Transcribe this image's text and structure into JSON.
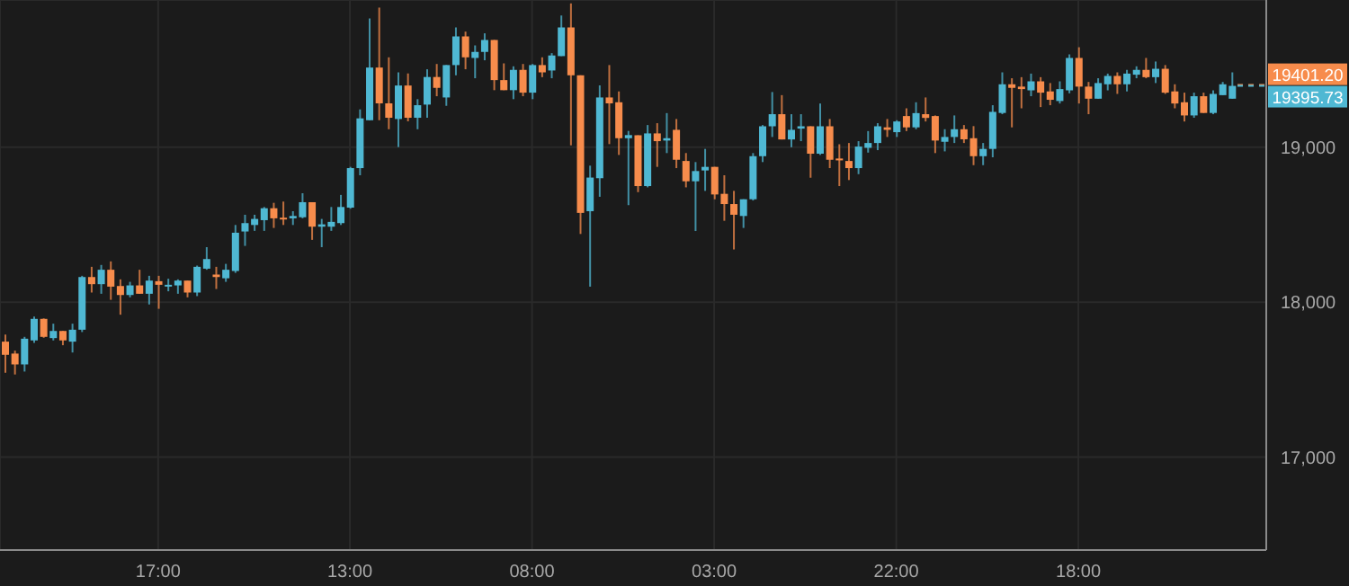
{
  "chart_data": {
    "type": "candlestick",
    "categories": [
      null,
      null,
      null,
      null,
      null,
      null,
      null,
      null,
      null,
      null,
      null,
      null,
      null,
      null,
      null,
      null,
      "17:00",
      null,
      null,
      null,
      null,
      null,
      null,
      null,
      null,
      null,
      null,
      null,
      null,
      null,
      null,
      null,
      null,
      null,
      null,
      null,
      "13:00",
      null,
      null,
      null,
      null,
      null,
      null,
      null,
      null,
      null,
      null,
      null,
      null,
      null,
      null,
      null,
      null,
      null,
      null,
      "08:00",
      null,
      null,
      null,
      null,
      null,
      null,
      null,
      null,
      null,
      null,
      null,
      null,
      null,
      null,
      null,
      null,
      null,
      null,
      "03:00",
      null,
      null,
      null,
      null,
      null,
      null,
      null,
      null,
      null,
      null,
      null,
      null,
      null,
      null,
      null,
      null,
      null,
      null,
      "22:00",
      null,
      null,
      null,
      null,
      null,
      null,
      null,
      null,
      null,
      null,
      null,
      null,
      null,
      null,
      null,
      null,
      null,
      null,
      "18:00",
      null,
      null,
      null,
      null,
      null,
      null,
      null,
      null,
      null,
      null,
      null,
      null,
      null,
      null,
      null,
      null
    ],
    "ohlc": [
      [
        17745,
        17791,
        17544,
        17660
      ],
      [
        17668,
        17687,
        17533,
        17598
      ],
      [
        17598,
        17776,
        17552,
        17764
      ],
      [
        17753,
        17907,
        17737,
        17892
      ],
      [
        17892,
        17895,
        17770,
        17776
      ],
      [
        17768,
        17861,
        17753,
        17814
      ],
      [
        17814,
        17814,
        17722,
        17753
      ],
      [
        17745,
        17861,
        17675,
        17822
      ],
      [
        17822,
        18170,
        17807,
        18162
      ],
      [
        18162,
        18228,
        18062,
        18116
      ],
      [
        18116,
        18240,
        18054,
        18209
      ],
      [
        18209,
        18263,
        18015,
        18100
      ],
      [
        18104,
        18147,
        17919,
        18046
      ],
      [
        18046,
        18131,
        18031,
        18108
      ],
      [
        18108,
        18209,
        18054,
        18054
      ],
      [
        18054,
        18170,
        17985,
        18139
      ],
      [
        18135,
        18170,
        17957,
        18112
      ],
      [
        18104,
        18151,
        18070,
        18112
      ],
      [
        18108,
        18147,
        18054,
        18139
      ],
      [
        18139,
        18139,
        18031,
        18062
      ],
      [
        18062,
        18236,
        18039,
        18228
      ],
      [
        18216,
        18355,
        18209,
        18278
      ],
      [
        18178,
        18228,
        18085,
        18162
      ],
      [
        18154,
        18247,
        18131,
        18209
      ],
      [
        18201,
        18498,
        18189,
        18448
      ],
      [
        18456,
        18564,
        18363,
        18510
      ],
      [
        18498,
        18564,
        18460,
        18537
      ],
      [
        18529,
        18614,
        18460,
        18606
      ],
      [
        18606,
        18641,
        18479,
        18541
      ],
      [
        18545,
        18649,
        18498,
        18537
      ],
      [
        18541,
        18587,
        18498,
        18556
      ],
      [
        18548,
        18703,
        18541,
        18645
      ],
      [
        18645,
        18645,
        18402,
        18487
      ],
      [
        18487,
        18537,
        18355,
        18502
      ],
      [
        18487,
        18614,
        18460,
        18518
      ],
      [
        18510,
        18692,
        18498,
        18614
      ],
      [
        18610,
        18873,
        18603,
        18865
      ],
      [
        18865,
        19244,
        18819,
        19186
      ],
      [
        19174,
        19831,
        19174,
        19514
      ],
      [
        19514,
        19901,
        19174,
        19283
      ],
      [
        19283,
        19580,
        19116,
        19190
      ],
      [
        19182,
        19483,
        19001,
        19398
      ],
      [
        19398,
        19476,
        19167,
        19190
      ],
      [
        19190,
        19310,
        19116,
        19271
      ],
      [
        19275,
        19503,
        19190,
        19453
      ],
      [
        19453,
        19537,
        19329,
        19383
      ],
      [
        19321,
        19530,
        19267,
        19530
      ],
      [
        19530,
        19773,
        19464,
        19715
      ],
      [
        19715,
        19746,
        19503,
        19580
      ],
      [
        19576,
        19657,
        19445,
        19615
      ],
      [
        19615,
        19735,
        19561,
        19692
      ],
      [
        19692,
        19692,
        19368,
        19433
      ],
      [
        19433,
        19541,
        19368,
        19368
      ],
      [
        19368,
        19522,
        19310,
        19499
      ],
      [
        19499,
        19537,
        19329,
        19352
      ],
      [
        19352,
        19537,
        19310,
        19530
      ],
      [
        19530,
        19580,
        19452,
        19483
      ],
      [
        19495,
        19607,
        19445,
        19592
      ],
      [
        19588,
        19850,
        19588,
        19773
      ],
      [
        19773,
        19928,
        19012,
        19464
      ],
      [
        19464,
        19464,
        18440,
        18576
      ],
      [
        18587,
        18881,
        18100,
        18804
      ],
      [
        18800,
        19399,
        18680,
        19321
      ],
      [
        19321,
        19530,
        19020,
        19283
      ],
      [
        19290,
        19360,
        18950,
        19058
      ],
      [
        19058,
        19105,
        18626,
        19078
      ],
      [
        19077,
        19077,
        18710,
        18749
      ],
      [
        18749,
        19143,
        18741,
        19089
      ],
      [
        19089,
        19155,
        18873,
        19039
      ],
      [
        19043,
        19220,
        18962,
        19058
      ],
      [
        19112,
        19182,
        18865,
        18919
      ],
      [
        18911,
        18962,
        18741,
        18780
      ],
      [
        18780,
        18904,
        18459,
        18846
      ],
      [
        18850,
        18989,
        18718,
        18873
      ],
      [
        18873,
        18873,
        18664,
        18695
      ],
      [
        18699,
        18819,
        18525,
        18633
      ],
      [
        18633,
        18718,
        18340,
        18564
      ],
      [
        18556,
        18664,
        18479,
        18664
      ],
      [
        18664,
        18962,
        18656,
        18942
      ],
      [
        18942,
        19143,
        18904,
        19135
      ],
      [
        19135,
        19356,
        19066,
        19213
      ],
      [
        19213,
        19336,
        19050,
        19050
      ],
      [
        19050,
        19213,
        19000,
        19112
      ],
      [
        19120,
        19213,
        19039,
        19135
      ],
      [
        19135,
        19135,
        18803,
        18958
      ],
      [
        18958,
        19282,
        18950,
        19135
      ],
      [
        19135,
        19182,
        18865,
        18919
      ],
      [
        18927,
        19019,
        18749,
        18915
      ],
      [
        18911,
        19027,
        18788,
        18865
      ],
      [
        18865,
        19039,
        18826,
        19004
      ],
      [
        18996,
        19104,
        18965,
        19027
      ],
      [
        19027,
        19155,
        18981,
        19135
      ],
      [
        19128,
        19182,
        19066,
        19112
      ],
      [
        19097,
        19174,
        19066,
        19166
      ],
      [
        19201,
        19251,
        19104,
        19128
      ],
      [
        19128,
        19290,
        19116,
        19220
      ],
      [
        19213,
        19321,
        19166,
        19189
      ],
      [
        19201,
        19205,
        18962,
        19043
      ],
      [
        19035,
        19116,
        18973,
        19066
      ],
      [
        19066,
        19205,
        19027,
        19116
      ],
      [
        19116,
        19143,
        19027,
        19051
      ],
      [
        19058,
        19136,
        18884,
        18942
      ],
      [
        18942,
        19027,
        18884,
        18989
      ],
      [
        18989,
        19271,
        18935,
        19228
      ],
      [
        19221,
        19483,
        19213,
        19406
      ],
      [
        19406,
        19445,
        19128,
        19383
      ],
      [
        19391,
        19452,
        19251,
        19375
      ],
      [
        19367,
        19475,
        19329,
        19425
      ],
      [
        19425,
        19452,
        19259,
        19352
      ],
      [
        19360,
        19414,
        19271,
        19306
      ],
      [
        19298,
        19425,
        19282,
        19375
      ],
      [
        19367,
        19599,
        19348,
        19576
      ],
      [
        19576,
        19645,
        19282,
        19391
      ],
      [
        19391,
        19421,
        19213,
        19313
      ],
      [
        19313,
        19445,
        19313,
        19414
      ],
      [
        19406,
        19475,
        19367,
        19460
      ],
      [
        19460,
        19483,
        19344,
        19406
      ],
      [
        19406,
        19499,
        19360,
        19475
      ],
      [
        19468,
        19522,
        19445,
        19499
      ],
      [
        19499,
        19576,
        19445,
        19452
      ],
      [
        19452,
        19553,
        19414,
        19506
      ],
      [
        19506,
        19530,
        19344,
        19352
      ],
      [
        19360,
        19406,
        19251,
        19282
      ],
      [
        19290,
        19352,
        19166,
        19205
      ],
      [
        19205,
        19352,
        19190,
        19329
      ],
      [
        19329,
        19352,
        19221,
        19221
      ],
      [
        19221,
        19367,
        19213,
        19344
      ],
      [
        19336,
        19421,
        19336,
        19406
      ],
      [
        19313,
        19483,
        19313,
        19395.73
      ]
    ],
    "colors": [
      "#f78c4c",
      "#f78c4c",
      "#4fb8d3",
      "#4fb8d3",
      "#f78c4c",
      "#4fb8d3",
      "#f78c4c",
      "#4fb8d3",
      "#4fb8d3",
      "#f78c4c",
      "#4fb8d3",
      "#f78c4c",
      "#f78c4c",
      "#4fb8d3",
      "#f78c4c",
      "#4fb8d3",
      "#f78c4c",
      "#4fb8d3",
      "#4fb8d3",
      "#f78c4c",
      "#4fb8d3",
      "#4fb8d3",
      "#f78c4c",
      "#4fb8d3",
      "#4fb8d3",
      "#4fb8d3",
      "#4fb8d3",
      "#4fb8d3",
      "#f78c4c",
      "#f78c4c",
      "#4fb8d3",
      "#4fb8d3",
      "#f78c4c",
      "#4fb8d3",
      "#4fb8d3",
      "#4fb8d3",
      "#4fb8d3",
      "#4fb8d3",
      "#4fb8d3",
      "#f78c4c",
      "#f78c4c",
      "#4fb8d3",
      "#f78c4c",
      "#4fb8d3",
      "#4fb8d3",
      "#f78c4c",
      "#4fb8d3",
      "#4fb8d3",
      "#f78c4c",
      "#4fb8d3",
      "#4fb8d3",
      "#f78c4c",
      "#f78c4c",
      "#4fb8d3",
      "#f78c4c",
      "#4fb8d3",
      "#f78c4c",
      "#4fb8d3",
      "#4fb8d3",
      "#f78c4c",
      "#f78c4c",
      "#4fb8d3",
      "#4fb8d3",
      "#f78c4c",
      "#f78c4c",
      "#4fb8d3",
      "#f78c4c",
      "#4fb8d3",
      "#f78c4c",
      "#4fb8d3",
      "#f78c4c",
      "#f78c4c",
      "#4fb8d3",
      "#4fb8d3",
      "#f78c4c",
      "#f78c4c",
      "#f78c4c",
      "#4fb8d3",
      "#4fb8d3",
      "#4fb8d3",
      "#4fb8d3",
      "#f78c4c",
      "#4fb8d3",
      "#4fb8d3",
      "#f78c4c",
      "#4fb8d3",
      "#f78c4c",
      "#f78c4c",
      "#f78c4c",
      "#4fb8d3",
      "#4fb8d3",
      "#4fb8d3",
      "#f78c4c",
      "#4fb8d3",
      "#f78c4c",
      "#4fb8d3",
      "#f78c4c",
      "#f78c4c",
      "#4fb8d3",
      "#4fb8d3",
      "#f78c4c",
      "#f78c4c",
      "#4fb8d3",
      "#4fb8d3",
      "#4fb8d3",
      "#f78c4c",
      "#f78c4c",
      "#4fb8d3",
      "#f78c4c",
      "#f78c4c",
      "#4fb8d3",
      "#4fb8d3",
      "#f78c4c",
      "#f78c4c",
      "#4fb8d3",
      "#4fb8d3",
      "#f78c4c",
      "#4fb8d3",
      "#4fb8d3",
      "#f78c4c",
      "#4fb8d3",
      "#f78c4c",
      "#f78c4c",
      "#f78c4c",
      "#4fb8d3",
      "#f78c4c",
      "#4fb8d3",
      "#4fb8d3",
      "#4fb8d3"
    ],
    "ylim": [
      16400,
      19950
    ],
    "yticks": [
      {
        "value": 17000,
        "label": "17,000"
      },
      {
        "value": 18000,
        "label": "18,000"
      },
      {
        "value": 19000,
        "label": "19,000"
      }
    ],
    "grid": true,
    "ref_lines": [
      {
        "axis": "y",
        "value": 19401.2,
        "label": "19401.20",
        "color": "#f78c4c",
        "line_style": "dashed"
      },
      {
        "axis": "y",
        "value": 19395.73,
        "label": "19395.73",
        "color": "#4fb8d3",
        "line_style": "dashed"
      }
    ]
  }
}
